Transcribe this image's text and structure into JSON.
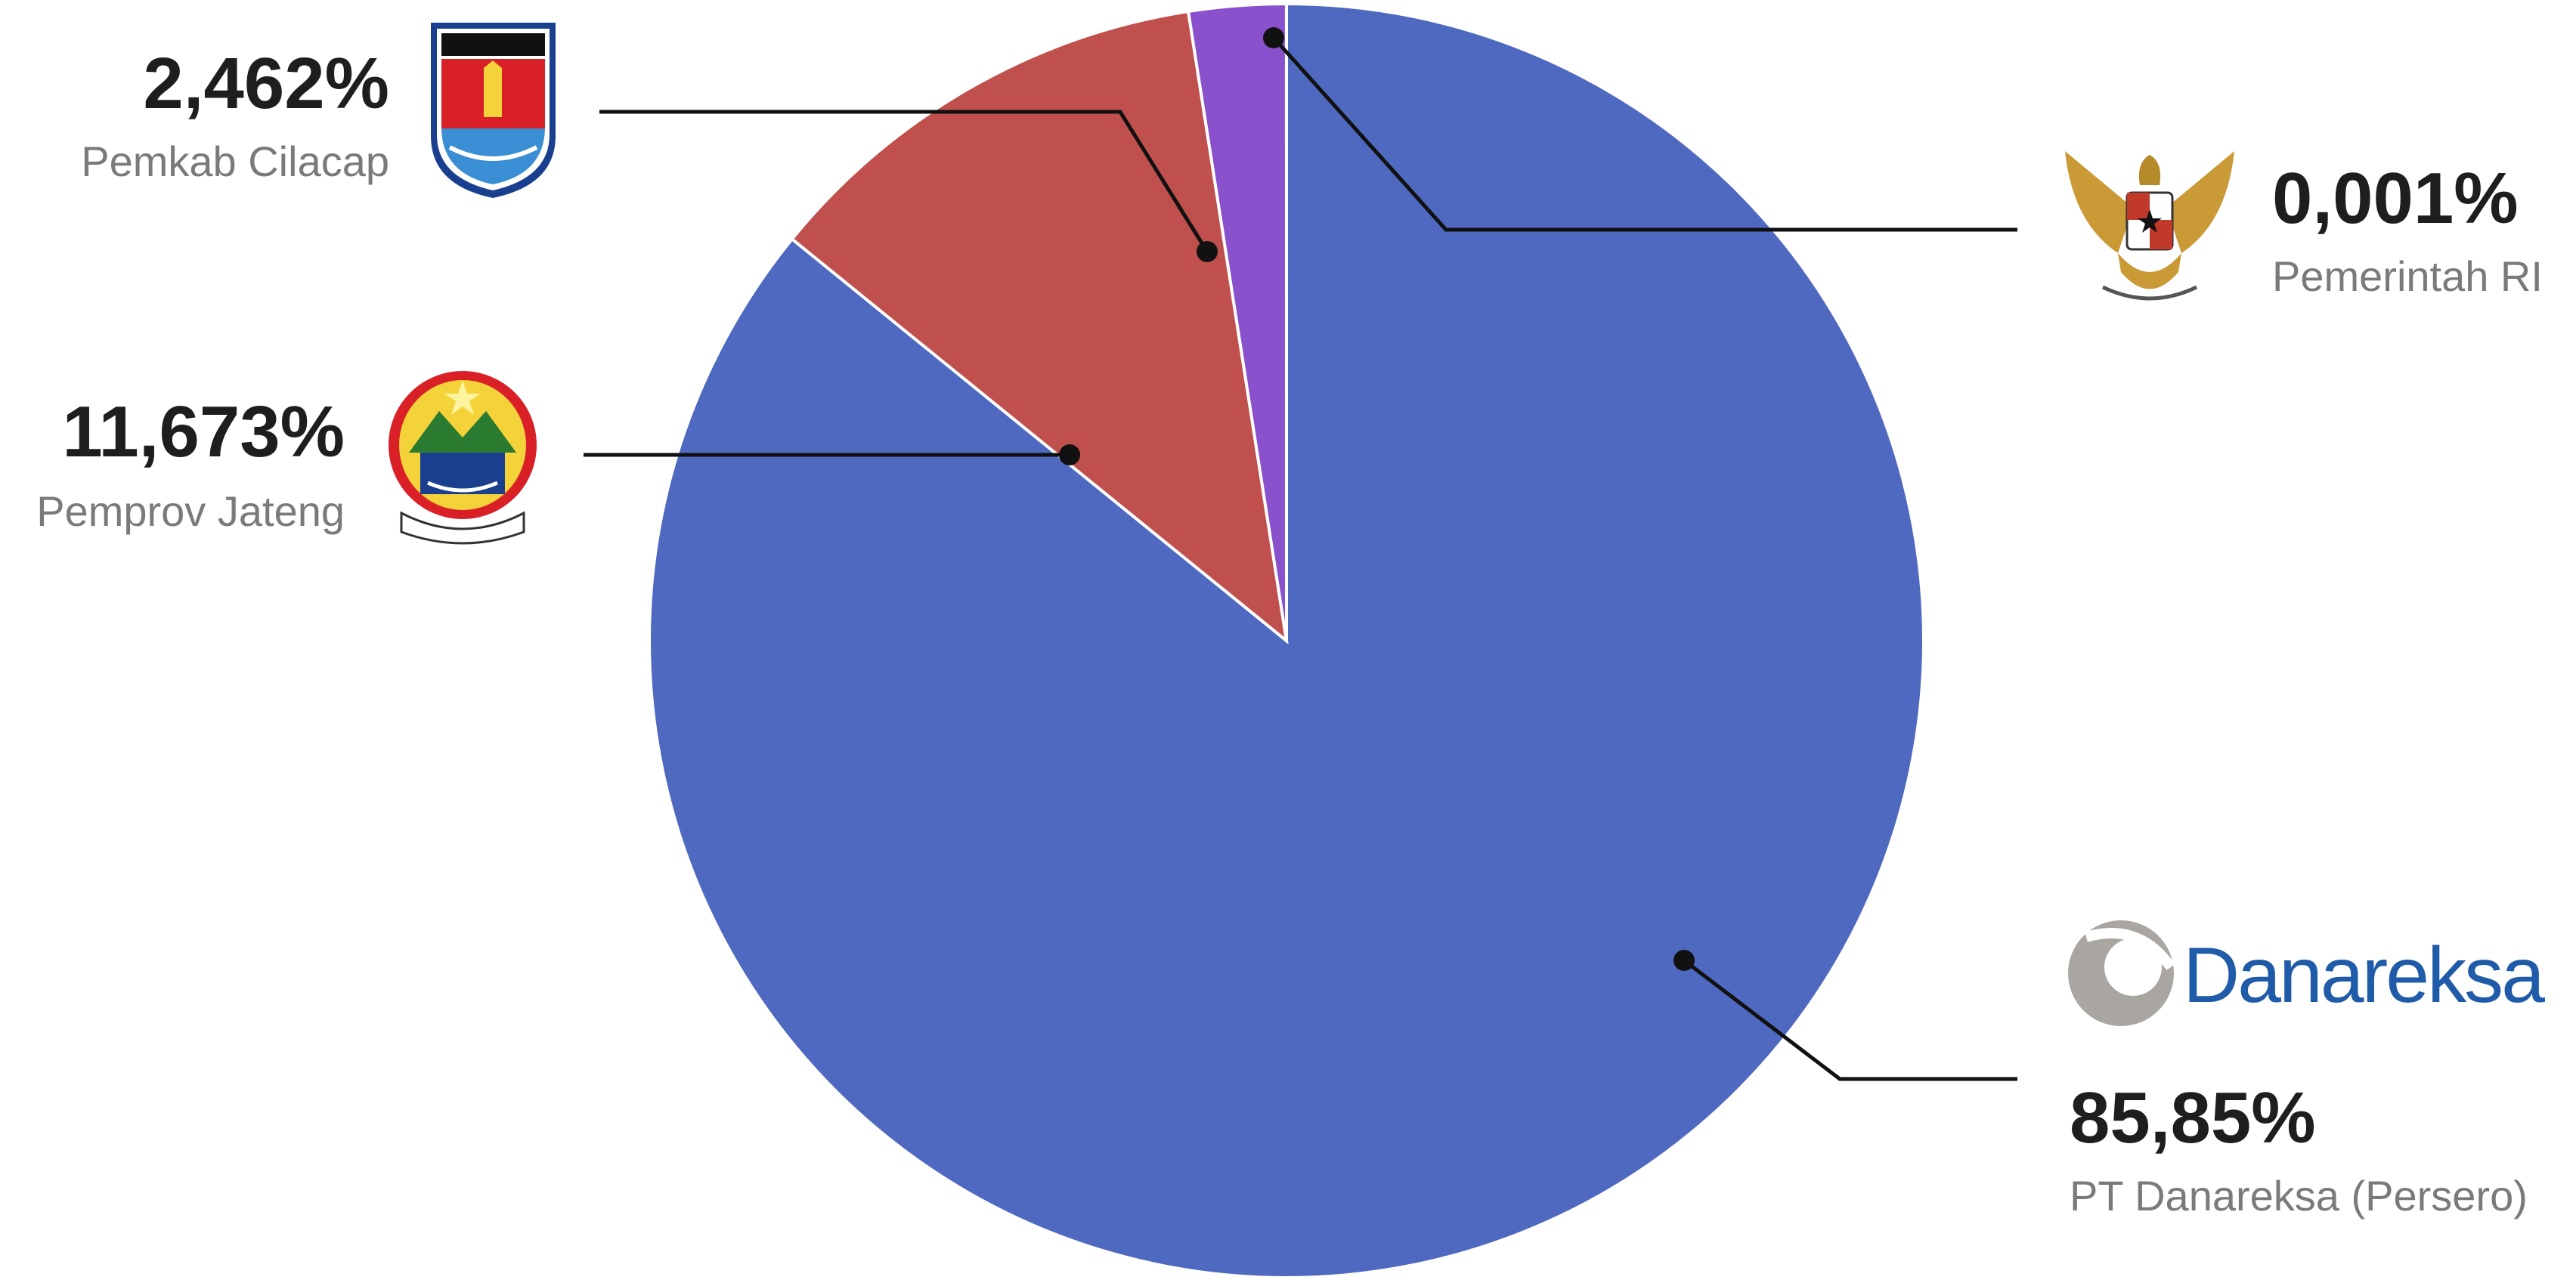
{
  "chart_data": {
    "type": "pie",
    "categories": [
      "PT Danareksa (Persero)",
      "Pemprov Jateng",
      "Pemkab Cilacap",
      "Pemerintah RI"
    ],
    "values": [
      85.85,
      11.673,
      2.462,
      0.001
    ],
    "value_labels": [
      "85,85%",
      "11,673%",
      "2,462%",
      "0,001%"
    ],
    "colors": [
      "#4f69c0",
      "#c0504d",
      "#8a51cc",
      "#ecca3e"
    ],
    "logo_text": "Danareksa"
  }
}
